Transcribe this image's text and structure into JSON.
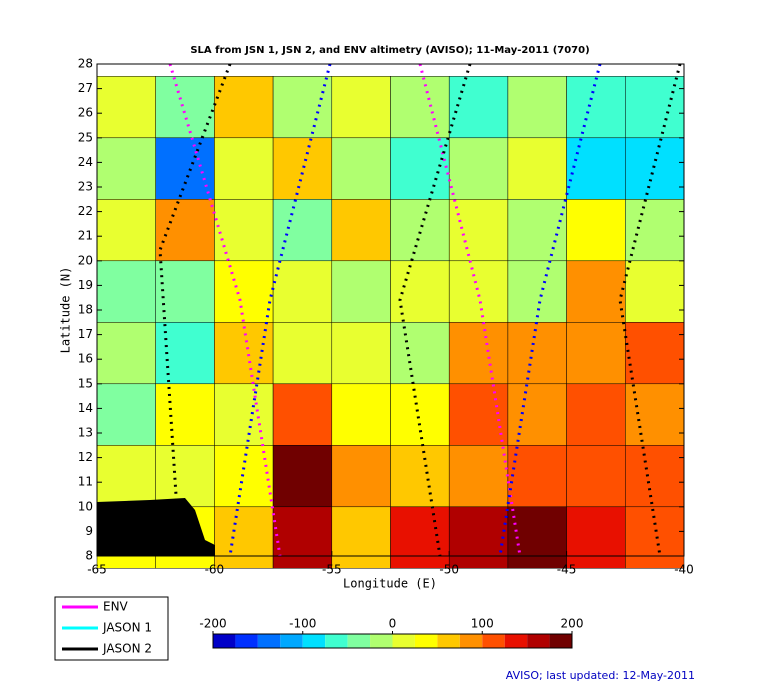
{
  "chart_data": {
    "type": "contour",
    "title": "SLA from JSN 1, JSN 2, and ENV altimetry (AVISO); 11-May-2011 (7070)",
    "xlabel": "Longitude (E)",
    "ylabel": "Latitude (N)",
    "xlim": [
      -65,
      -40
    ],
    "ylim": [
      8,
      28
    ],
    "xticks": [
      -65,
      -60,
      -55,
      -50,
      -45,
      -40
    ],
    "yticks": [
      8,
      9,
      10,
      11,
      12,
      13,
      14,
      15,
      16,
      17,
      18,
      19,
      20,
      21,
      22,
      23,
      24,
      25,
      26,
      27,
      28
    ],
    "grid": {
      "lon": [
        -63.75,
        -61.25,
        -58.75,
        -56.25,
        -53.75,
        -51.25,
        -48.75,
        -46.25,
        -43.75,
        -41.25
      ],
      "lat": [
        26.25,
        23.75,
        21.25,
        18.75,
        16.25,
        13.75,
        11.25,
        8.75
      ],
      "values": [
        [
          0,
          -50,
          50,
          -25,
          0,
          -25,
          -75,
          -25,
          -75,
          -75
        ],
        [
          -25,
          -150,
          0,
          50,
          -25,
          -75,
          -25,
          0,
          -100,
          -100
        ],
        [
          0,
          75,
          0,
          -50,
          50,
          -25,
          0,
          -25,
          25,
          -25
        ],
        [
          -50,
          -50,
          25,
          0,
          -25,
          0,
          0,
          -25,
          75,
          0
        ],
        [
          -25,
          -75,
          50,
          0,
          0,
          -25,
          75,
          75,
          75,
          100
        ],
        [
          -50,
          25,
          0,
          100,
          25,
          25,
          100,
          75,
          100,
          75
        ],
        [
          0,
          0,
          25,
          175,
          75,
          50,
          75,
          100,
          100,
          100
        ],
        [
          25,
          25,
          50,
          150,
          50,
          125,
          150,
          175,
          125,
          100
        ]
      ]
    },
    "colorbar": {
      "lim": [
        -200,
        200
      ],
      "ticks": [
        -200,
        -100,
        0,
        100,
        200
      ],
      "colors": [
        "#0000c8",
        "#0030ff",
        "#0070ff",
        "#00a8ff",
        "#00e0ff",
        "#40ffd0",
        "#80ffa0",
        "#b0ff70",
        "#e8ff30",
        "#ffff00",
        "#ffc800",
        "#ff9000",
        "#ff5000",
        "#e81000",
        "#b00000",
        "#700000"
      ]
    },
    "legend": [
      {
        "name": "ENV",
        "color": "#ff00ff"
      },
      {
        "name": "JASON 1",
        "color": "#00ffff"
      },
      {
        "name": "JASON 2",
        "color": "#000000"
      }
    ],
    "footer": "AVISO; last updated: 12-May-2011"
  }
}
